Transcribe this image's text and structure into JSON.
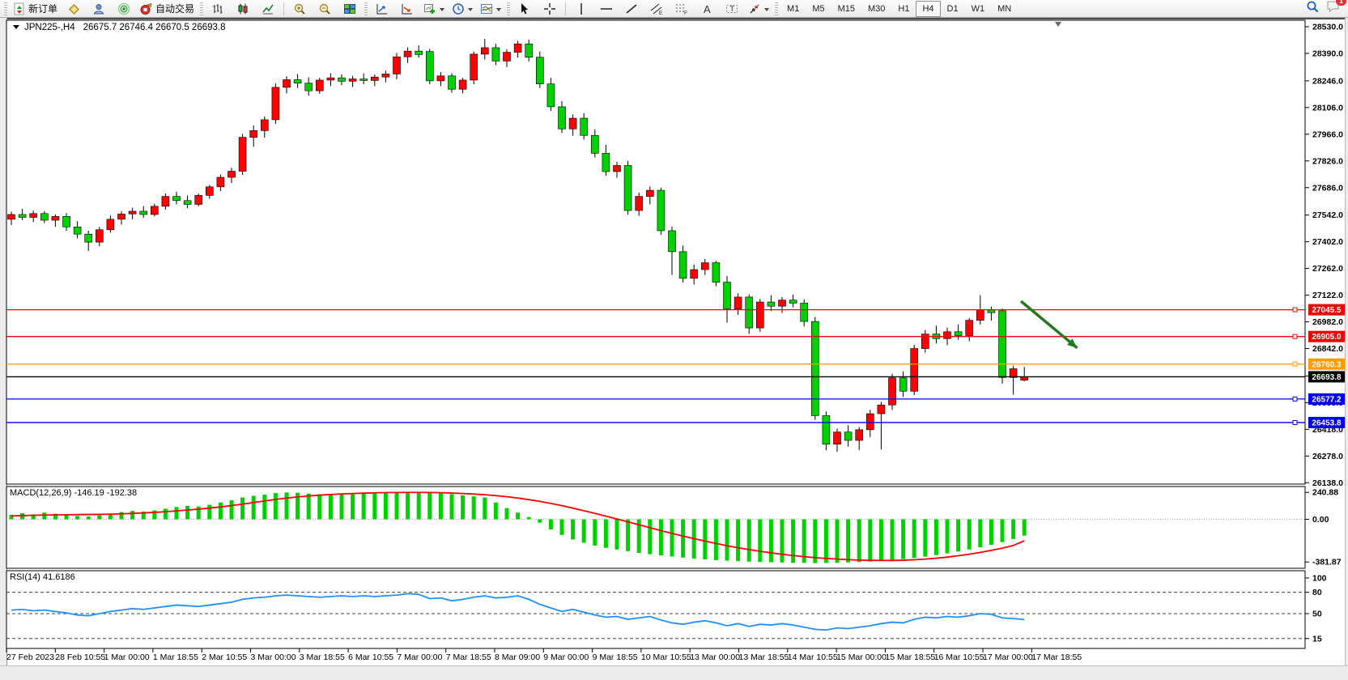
{
  "toolbar": {
    "new_order_label": "新订单",
    "autotrade_label": "自动交易",
    "timeframes": [
      "M1",
      "M5",
      "M15",
      "M30",
      "H1",
      "H4",
      "D1",
      "W1",
      "MN"
    ],
    "active_timeframe": "H4",
    "notification_count": "1"
  },
  "chart": {
    "title": "JPN225-,H4",
    "ohlc": "26675.7 26746.4 26670.5 26693.8",
    "macd_label": "MACD(12,26,9) -146.19 -192.38",
    "rsi_label": "RSI(14) 41.6186"
  },
  "chart_data": {
    "type": "candlestick",
    "symbol": "JPN225-",
    "period": "H4",
    "colors": {
      "up": "#ff0000",
      "down": "#00d000",
      "macd_hist": "#00d000",
      "macd_signal": "#ff0000",
      "rsi": "#1e90ff",
      "axis": "#000000"
    },
    "price_axis": {
      "ticks": [
        28530,
        28390,
        28246,
        28106,
        27966,
        27826,
        27686,
        27542,
        27402,
        27262,
        27122,
        26982,
        26842,
        26698,
        26558,
        26418,
        26278,
        26138
      ]
    },
    "time_labels": [
      "27 Feb 2023",
      "28 Feb 10:55",
      "1 Mar 00:00",
      "1 Mar 18:55",
      "2 Mar 10:55",
      "3 Mar 00:00",
      "3 Mar 18:55",
      "6 Mar 10:55",
      "7 Mar 00:00",
      "7 Mar 18:55",
      "8 Mar 09:00",
      "9 Mar 00:00",
      "9 Mar 18:55",
      "10 Mar 10:55",
      "13 Mar 00:00",
      "13 Mar 18:55",
      "14 Mar 10:55",
      "15 Mar 00:00",
      "15 Mar 18:55",
      "16 Mar 10:55",
      "17 Mar 00:00",
      "17 Mar 18:55"
    ],
    "hlines": [
      {
        "price": 27045.5,
        "label": "27045.5",
        "color": "#f00000",
        "kind": "resistance"
      },
      {
        "price": 26905.0,
        "label": "26905.0",
        "color": "#f00000",
        "kind": "resistance"
      },
      {
        "price": 26760.3,
        "label": "26760.3",
        "color": "#ff9d00",
        "kind": "pivot"
      },
      {
        "price": 26693.8,
        "label": "26693.8",
        "color": "#000000",
        "kind": "current-price"
      },
      {
        "price": 26577.2,
        "label": "26577.2",
        "color": "#0000f0",
        "kind": "support"
      },
      {
        "price": 26453.8,
        "label": "26453.8",
        "color": "#0000f0",
        "kind": "support"
      }
    ],
    "candles": [
      [
        27520,
        27560,
        27490,
        27545
      ],
      [
        27545,
        27575,
        27515,
        27530
      ],
      [
        27530,
        27565,
        27505,
        27550
      ],
      [
        27550,
        27562,
        27500,
        27515
      ],
      [
        27515,
        27545,
        27480,
        27535
      ],
      [
        27535,
        27552,
        27460,
        27480
      ],
      [
        27480,
        27510,
        27420,
        27442
      ],
      [
        27442,
        27460,
        27354,
        27400
      ],
      [
        27400,
        27480,
        27378,
        27465
      ],
      [
        27465,
        27540,
        27450,
        27520
      ],
      [
        27520,
        27562,
        27492,
        27548
      ],
      [
        27548,
        27580,
        27520,
        27562
      ],
      [
        27562,
        27590,
        27528,
        27545
      ],
      [
        27545,
        27602,
        27535,
        27588
      ],
      [
        27588,
        27655,
        27570,
        27640
      ],
      [
        27640,
        27665,
        27598,
        27618
      ],
      [
        27618,
        27645,
        27578,
        27598
      ],
      [
        27598,
        27655,
        27588,
        27645
      ],
      [
        27645,
        27700,
        27628,
        27690
      ],
      [
        27690,
        27755,
        27668,
        27740
      ],
      [
        27740,
        27790,
        27710,
        27772
      ],
      [
        27772,
        27968,
        27752,
        27950
      ],
      [
        27950,
        28012,
        27900,
        27985
      ],
      [
        27985,
        28060,
        27948,
        28042
      ],
      [
        28042,
        28232,
        28020,
        28212
      ],
      [
        28212,
        28270,
        28180,
        28252
      ],
      [
        28252,
        28282,
        28208,
        28234
      ],
      [
        28234,
        28264,
        28168,
        28194
      ],
      [
        28194,
        28262,
        28178,
        28250
      ],
      [
        28250,
        28286,
        28218,
        28262
      ],
      [
        28262,
        28280,
        28224,
        28244
      ],
      [
        28244,
        28272,
        28214,
        28256
      ],
      [
        28256,
        28286,
        28228,
        28248
      ],
      [
        28248,
        28280,
        28218,
        28266
      ],
      [
        28266,
        28300,
        28238,
        28282
      ],
      [
        28282,
        28392,
        28254,
        28372
      ],
      [
        28372,
        28422,
        28340,
        28402
      ],
      [
        28402,
        28432,
        28368,
        28384
      ],
      [
        28400,
        28414,
        28228,
        28246
      ],
      [
        28246,
        28292,
        28218,
        28272
      ],
      [
        28272,
        28286,
        28184,
        28202
      ],
      [
        28202,
        28262,
        28180,
        28250
      ],
      [
        28250,
        28400,
        28228,
        28386
      ],
      [
        28386,
        28466,
        28358,
        28420
      ],
      [
        28420,
        28440,
        28328,
        28350
      ],
      [
        28350,
        28412,
        28318,
        28396
      ],
      [
        28396,
        28456,
        28368,
        28440
      ],
      [
        28440,
        28462,
        28348,
        28370
      ],
      [
        28370,
        28400,
        28208,
        28230
      ],
      [
        28230,
        28262,
        28088,
        28110
      ],
      [
        28110,
        28140,
        27972,
        27994
      ],
      [
        27994,
        28070,
        27958,
        28050
      ],
      [
        28050,
        28076,
        27938,
        27960
      ],
      [
        27960,
        27992,
        27844,
        27866
      ],
      [
        27866,
        27910,
        27748,
        27770
      ],
      [
        27770,
        27822,
        27738,
        27802
      ],
      [
        27802,
        27826,
        27544,
        27566
      ],
      [
        27566,
        27660,
        27538,
        27640
      ],
      [
        27640,
        27692,
        27598,
        27672
      ],
      [
        27672,
        27686,
        27438,
        27460
      ],
      [
        27460,
        27482,
        27228,
        27350
      ],
      [
        27350,
        27382,
        27188,
        27210
      ],
      [
        27210,
        27282,
        27178,
        27256
      ],
      [
        27256,
        27312,
        27228,
        27292
      ],
      [
        27292,
        27302,
        27168,
        27190
      ],
      [
        27190,
        27222,
        26978,
        27050
      ],
      [
        27050,
        27132,
        27018,
        27112
      ],
      [
        27112,
        27126,
        26918,
        26950
      ],
      [
        26950,
        27102,
        26930,
        27086
      ],
      [
        27086,
        27122,
        27038,
        27064
      ],
      [
        27064,
        27112,
        27028,
        27096
      ],
      [
        27096,
        27126,
        27058,
        27080
      ],
      [
        27080,
        27100,
        26958,
        26984
      ],
      [
        26984,
        27008,
        26468,
        26490
      ],
      [
        26490,
        26512,
        26308,
        26340
      ],
      [
        26340,
        26422,
        26300,
        26404
      ],
      [
        26404,
        26440,
        26328,
        26360
      ],
      [
        26360,
        26430,
        26310,
        26416
      ],
      [
        26416,
        26520,
        26378,
        26500
      ],
      [
        26500,
        26562,
        26312,
        26546
      ],
      [
        26546,
        26710,
        26520,
        26688
      ],
      [
        26688,
        26722,
        26588,
        26618
      ],
      [
        26618,
        26862,
        26598,
        26842
      ],
      [
        26842,
        26940,
        26820,
        26918
      ],
      [
        26918,
        26962,
        26868,
        26894
      ],
      [
        26894,
        26952,
        26860,
        26930
      ],
      [
        26930,
        26968,
        26888,
        26910
      ],
      [
        26910,
        27002,
        26880,
        26990
      ],
      [
        26990,
        27122,
        26968,
        27046
      ],
      [
        27046,
        27062,
        26988,
        27030
      ],
      [
        27040,
        27052,
        26658,
        26690
      ],
      [
        26690,
        26752,
        26600,
        26736
      ],
      [
        26676,
        26746,
        26670,
        26694
      ]
    ],
    "macd": {
      "params": "12,26,9",
      "main": -146.19,
      "signal": -192.38,
      "axis": [
        240.88,
        0.0,
        -381.87
      ],
      "histogram": [
        40,
        55,
        45,
        60,
        50,
        40,
        30,
        25,
        35,
        50,
        65,
        75,
        70,
        80,
        95,
        110,
        120,
        115,
        130,
        150,
        170,
        195,
        210,
        220,
        235,
        240,
        238,
        230,
        225,
        228,
        232,
        235,
        238,
        240,
        242,
        243,
        245,
        244,
        240,
        235,
        225,
        215,
        205,
        195,
        150,
        100,
        60,
        20,
        -30,
        -90,
        -140,
        -180,
        -210,
        -235,
        -255,
        -270,
        -285,
        -300,
        -312,
        -322,
        -332,
        -342,
        -350,
        -358,
        -365,
        -370,
        -374,
        -378,
        -381,
        -384,
        -386,
        -388,
        -390,
        -392,
        -391,
        -389,
        -386,
        -382,
        -377,
        -371,
        -364,
        -356,
        -346,
        -334,
        -320,
        -305,
        -288,
        -270,
        -250,
        -228,
        -204,
        -176,
        -146
      ],
      "signal_line": [
        30,
        33,
        36,
        38,
        40,
        41,
        42,
        43,
        44,
        46,
        49,
        53,
        57,
        62,
        68,
        75,
        83,
        91,
        100,
        111,
        123,
        136,
        150,
        164,
        178,
        190,
        200,
        209,
        216,
        222,
        227,
        231,
        234,
        237,
        239,
        240,
        241,
        241,
        240,
        238,
        235,
        231,
        226,
        220,
        212,
        202,
        190,
        176,
        160,
        142,
        122,
        100,
        77,
        53,
        28,
        3,
        -23,
        -49,
        -75,
        -101,
        -126,
        -150,
        -173,
        -195,
        -216,
        -236,
        -254,
        -271,
        -286,
        -300,
        -313,
        -324,
        -334,
        -343,
        -350,
        -356,
        -361,
        -365,
        -367,
        -368,
        -368,
        -366,
        -362,
        -356,
        -348,
        -338,
        -326,
        -312,
        -296,
        -278,
        -258,
        -234,
        -192
      ]
    },
    "rsi": {
      "period": 14,
      "value": 41.6186,
      "axis": [
        100,
        80,
        50,
        15
      ],
      "levels": [
        80,
        50,
        15
      ],
      "line": [
        55,
        56,
        54,
        55,
        53,
        51,
        48,
        47,
        50,
        53,
        55,
        57,
        56,
        58,
        60,
        62,
        61,
        60,
        62,
        64,
        66,
        70,
        72,
        73,
        75,
        76,
        75,
        74,
        73,
        74,
        75,
        74,
        75,
        74,
        75,
        76,
        78,
        77,
        71,
        72,
        68,
        70,
        73,
        75,
        72,
        73,
        75,
        70,
        63,
        58,
        53,
        56,
        52,
        48,
        45,
        46,
        42,
        44,
        46,
        41,
        37,
        35,
        38,
        40,
        37,
        33,
        36,
        32,
        35,
        34,
        36,
        34,
        31,
        28,
        27,
        30,
        29,
        31,
        33,
        36,
        38,
        37,
        42,
        45,
        44,
        46,
        45,
        47,
        50,
        49,
        44,
        43,
        41.6
      ]
    },
    "arrow": {
      "from_bar": 91.7,
      "from_price": 27090,
      "to_bar": 96.8,
      "to_price": 26845,
      "color": "#217a21"
    }
  }
}
